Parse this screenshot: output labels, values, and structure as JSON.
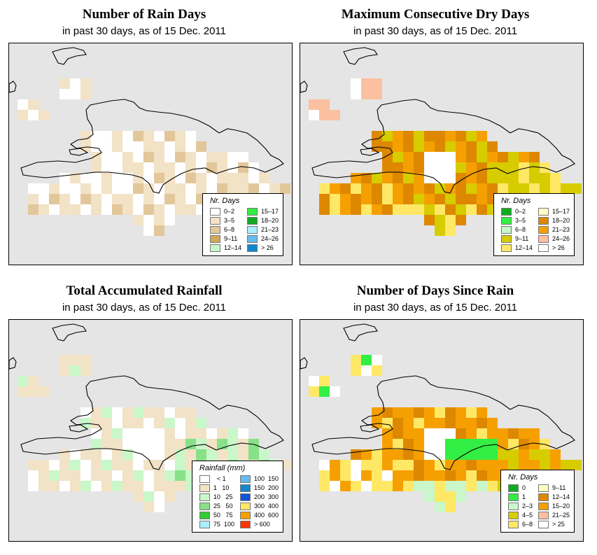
{
  "panels": [
    {
      "title": "Number of Rain Days",
      "subtitle": "in past 30 days, as of  15 Dec. 2011",
      "legend_title": "Nr. Days",
      "legend": [
        {
          "label": "0–2",
          "color": "#ffffff"
        },
        {
          "label": "3–5",
          "color": "#f2e2c6"
        },
        {
          "label": "6–8",
          "color": "#e2c79a"
        },
        {
          "label": "9–11",
          "color": "#d1a95c"
        },
        {
          "label": "12–14",
          "color": "#c9f7c9"
        },
        {
          "label": "15–17",
          "color": "#33ee44"
        },
        {
          "label": "18–20",
          "color": "#11aa22"
        },
        {
          "label": "21–23",
          "color": "#aaeeff"
        },
        {
          "label": "24–26",
          "color": "#66bbee"
        },
        {
          "label": "> 26",
          "color": "#1188cc"
        }
      ]
    },
    {
      "title": "Maximum Consecutive Dry Days",
      "subtitle": "in past 30 days, as of  15 Dec. 2011",
      "legend_title": "Nr. Days",
      "legend": [
        {
          "label": "0–2",
          "color": "#11aa22"
        },
        {
          "label": "3–5",
          "color": "#33ee44"
        },
        {
          "label": "6–8",
          "color": "#c9f7c9"
        },
        {
          "label": "9–11",
          "color": "#d6cc00"
        },
        {
          "label": "12–14",
          "color": "#ffe866"
        },
        {
          "label": "15–17",
          "color": "#ffffc4"
        },
        {
          "label": "18–20",
          "color": "#dd8800"
        },
        {
          "label": "21–23",
          "color": "#f5a000"
        },
        {
          "label": "24–26",
          "color": "#fbc0a0"
        },
        {
          "label": "> 26",
          "color": "#ffffff"
        }
      ]
    },
    {
      "title": "Total Accumulated Rainfall",
      "subtitle": "in past 30 days, as of  15 Dec. 2011",
      "legend_title": "Rainfall (mm)",
      "legend": [
        {
          "label": "  < 1",
          "color": "#ffffff"
        },
        {
          "label": "1   10",
          "color": "#f2e2c6"
        },
        {
          "label": "10   25",
          "color": "#c9f7c9"
        },
        {
          "label": "25   50",
          "color": "#88e088"
        },
        {
          "label": "50   75",
          "color": "#33cc33"
        },
        {
          "label": "75  100",
          "color": "#aaeeff"
        },
        {
          "label": "100  150",
          "color": "#66bbee"
        },
        {
          "label": "150  200",
          "color": "#1188cc"
        },
        {
          "label": "200  300",
          "color": "#1155dd"
        },
        {
          "label": "300  400",
          "color": "#ffe866"
        },
        {
          "label": "400  600",
          "color": "#f5a000"
        },
        {
          "label": "> 600",
          "color": "#ff3300"
        }
      ]
    },
    {
      "title": "Number of Days Since Rain",
      "subtitle": "in past 30 days, as of  15 Dec. 2011",
      "legend_title": "Nr. Days",
      "legend": [
        {
          "label": "0",
          "color": "#11aa22"
        },
        {
          "label": "1",
          "color": "#33ee44"
        },
        {
          "label": "2–3",
          "color": "#c9f7c9"
        },
        {
          "label": "4–5",
          "color": "#d6cc00"
        },
        {
          "label": "6–8",
          "color": "#ffe866"
        },
        {
          "label": "9–11",
          "color": "#ffffc4"
        },
        {
          "label": "12–14",
          "color": "#dd8800"
        },
        {
          "label": "15–20",
          "color": "#f5a000"
        },
        {
          "label": "21–25",
          "color": "#fbc0a0"
        },
        {
          "label": "> 25",
          "color": "#ffffff"
        }
      ]
    }
  ],
  "ocean_color": "#e5e5e5",
  "coast_color": "#000000"
}
